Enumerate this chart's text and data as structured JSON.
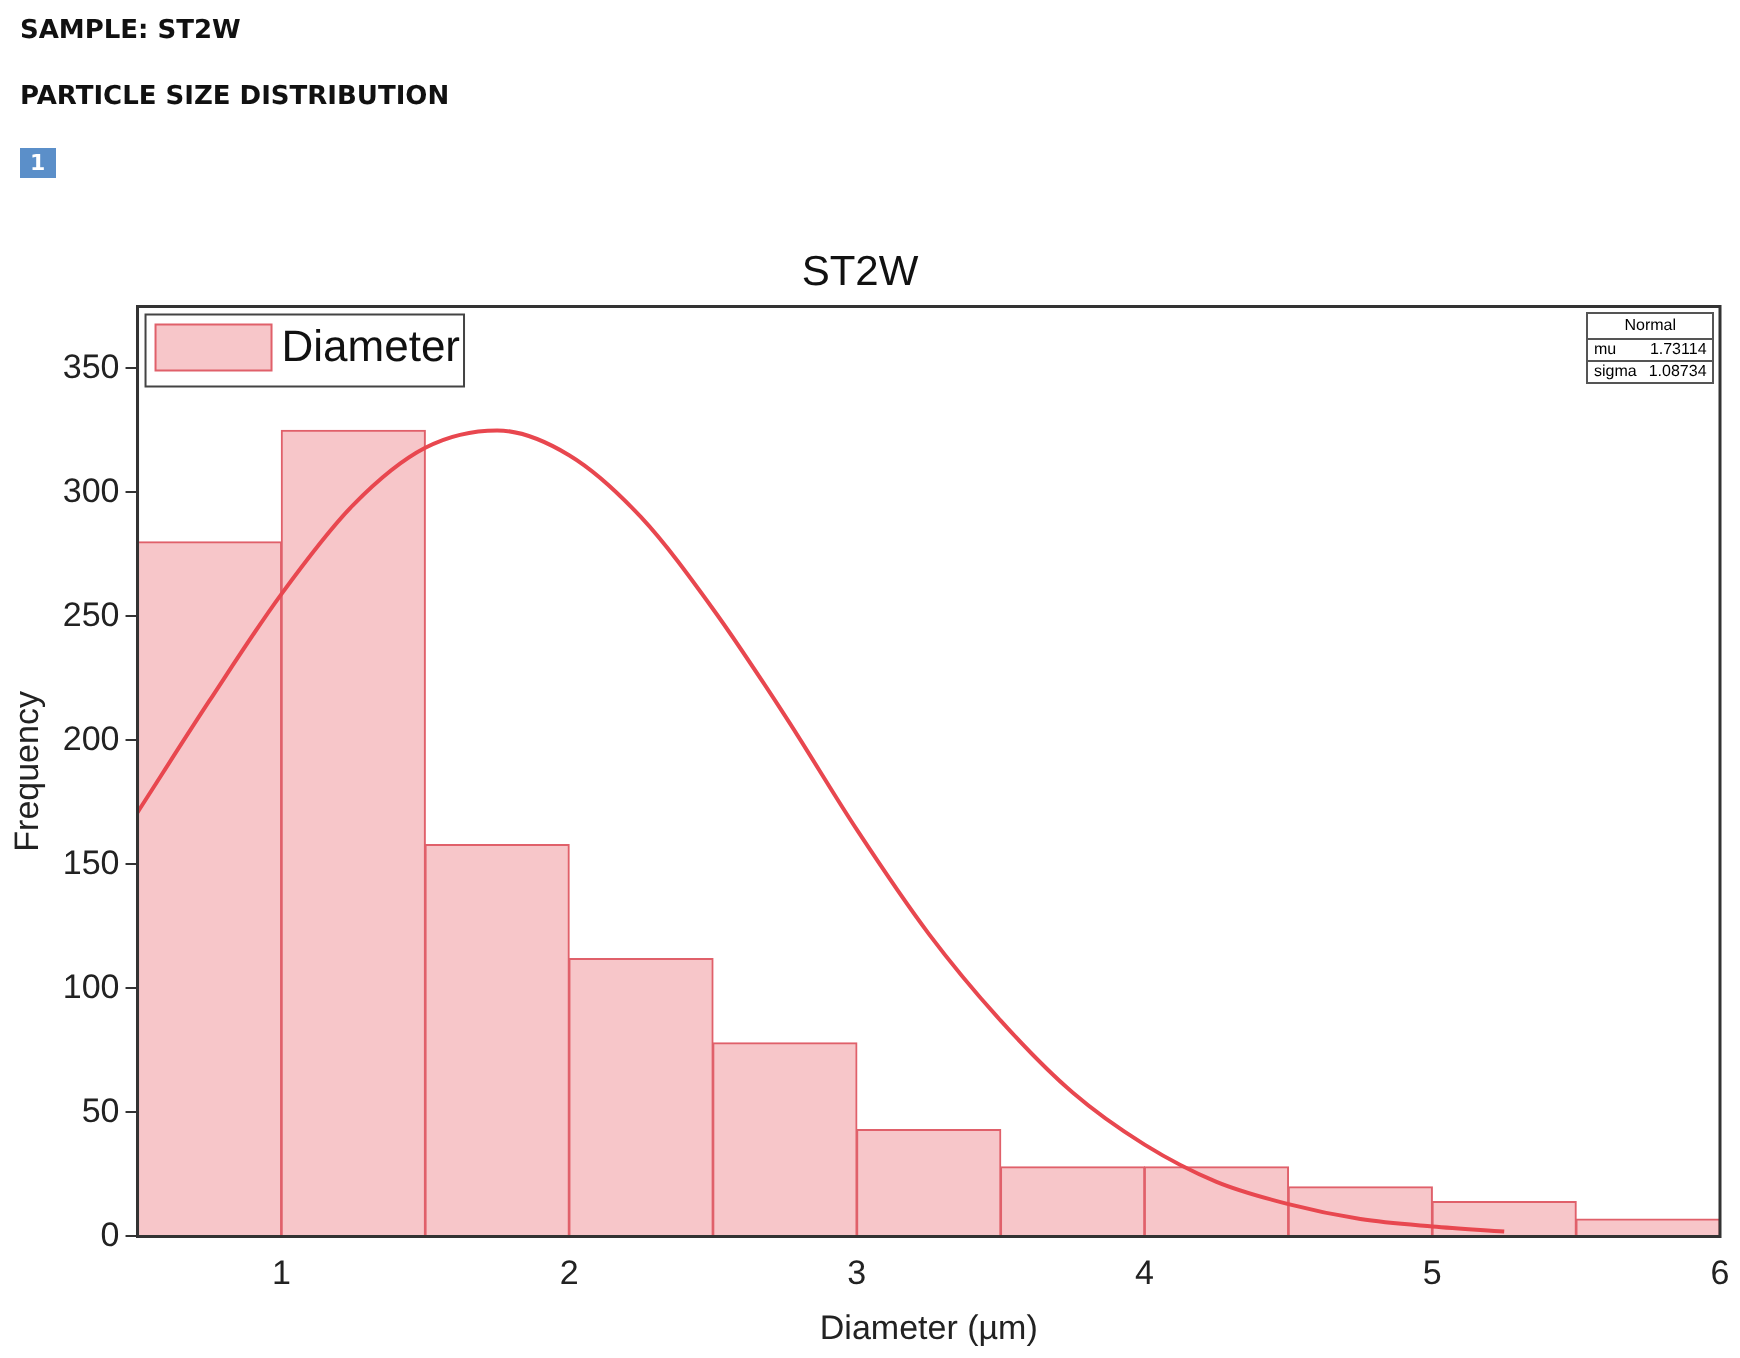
{
  "chart_data": {
    "type": "histogram",
    "title": "ST2W",
    "xlabel": "Diameter (µm)",
    "ylabel": "Frequency",
    "annotations": [
      "SAMPLE: ST2W",
      "PARTICLE SIZE DISTRIBUTION",
      "1",
      "Normal",
      "mu",
      "1.73114",
      "sigma",
      "1.08734"
    ],
    "bins": [
      0.5,
      1,
      1.5,
      2,
      2.5,
      3,
      3.5,
      4,
      4.5,
      5,
      5.5,
      6
    ],
    "series": [
      {
        "name": "Diameter",
        "color": "#f7c6c9",
        "values": [
          280,
          325,
          158,
          112,
          78,
          43,
          28,
          28,
          20,
          14,
          7
        ]
      },
      {
        "type": "line",
        "color": "#e8474f",
        "x": [
          0.5,
          0.75,
          1,
          1.25,
          1.5,
          1.75,
          2,
          2.25,
          2.5,
          2.75,
          3,
          3.25,
          3.5,
          3.75,
          4,
          4.25,
          4.5,
          4.75,
          5,
          5.25
        ],
        "values": [
          171,
          216,
          259,
          295,
          318,
          325,
          315,
          290,
          253,
          210,
          164,
          122,
          87,
          58,
          37,
          22,
          13,
          7,
          4,
          2
        ]
      }
    ],
    "xlim": [
      0.5,
      6
    ],
    "xticks": [
      1,
      2,
      3,
      4,
      5,
      6
    ],
    "ylim": [
      0,
      375
    ],
    "yticks": [
      0,
      50,
      100,
      150,
      200,
      250,
      300,
      350
    ],
    "grid": false,
    "legend": "top left",
    "marker": "none",
    "line_style": "solid"
  }
}
